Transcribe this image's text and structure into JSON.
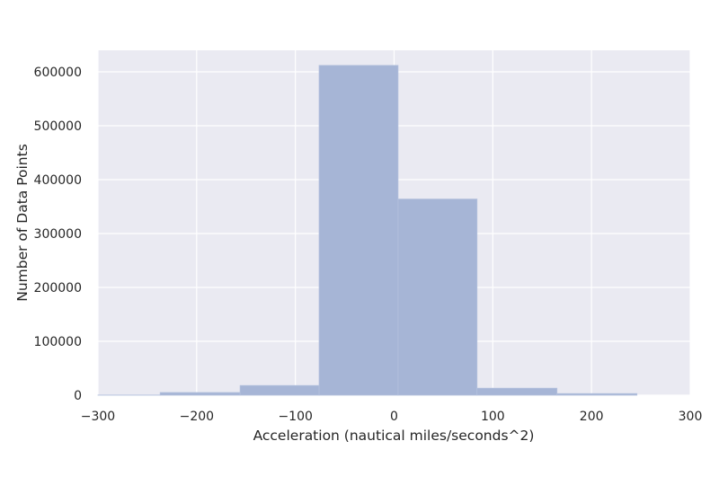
{
  "chart_data": {
    "type": "bar",
    "title": "",
    "xlabel": "Acceleration (nautical miles/seconds^2)",
    "ylabel": "Number of Data Points",
    "xlim": [
      -300,
      300
    ],
    "ylim": [
      0,
      640000
    ],
    "xticks": [
      -300,
      -200,
      -100,
      0,
      100,
      200,
      300
    ],
    "xtick_labels": [
      "−300",
      "−200",
      "−100",
      "0",
      "100",
      "200",
      "300"
    ],
    "yticks": [
      0,
      100000,
      200000,
      300000,
      400000,
      500000,
      600000
    ],
    "ytick_labels": [
      "0",
      "100000",
      "200000",
      "300000",
      "400000",
      "500000",
      "600000"
    ],
    "grid": true,
    "bins": [
      {
        "x0": -318,
        "x1": -237,
        "value": 300
      },
      {
        "x0": -237,
        "x1": -156,
        "value": 5000
      },
      {
        "x0": -156,
        "x1": -76,
        "value": 18000
      },
      {
        "x0": -76,
        "x1": 4,
        "value": 612000
      },
      {
        "x0": 4,
        "x1": 84,
        "value": 364000
      },
      {
        "x0": 84,
        "x1": 165,
        "value": 13000
      },
      {
        "x0": 165,
        "x1": 246,
        "value": 3000
      }
    ],
    "colors": {
      "bar": "#a6b5d6",
      "bar_edge": "#b4c1dd",
      "plot_background": "#eaeaf2",
      "grid": "#ffffff",
      "text": "#262626"
    }
  }
}
